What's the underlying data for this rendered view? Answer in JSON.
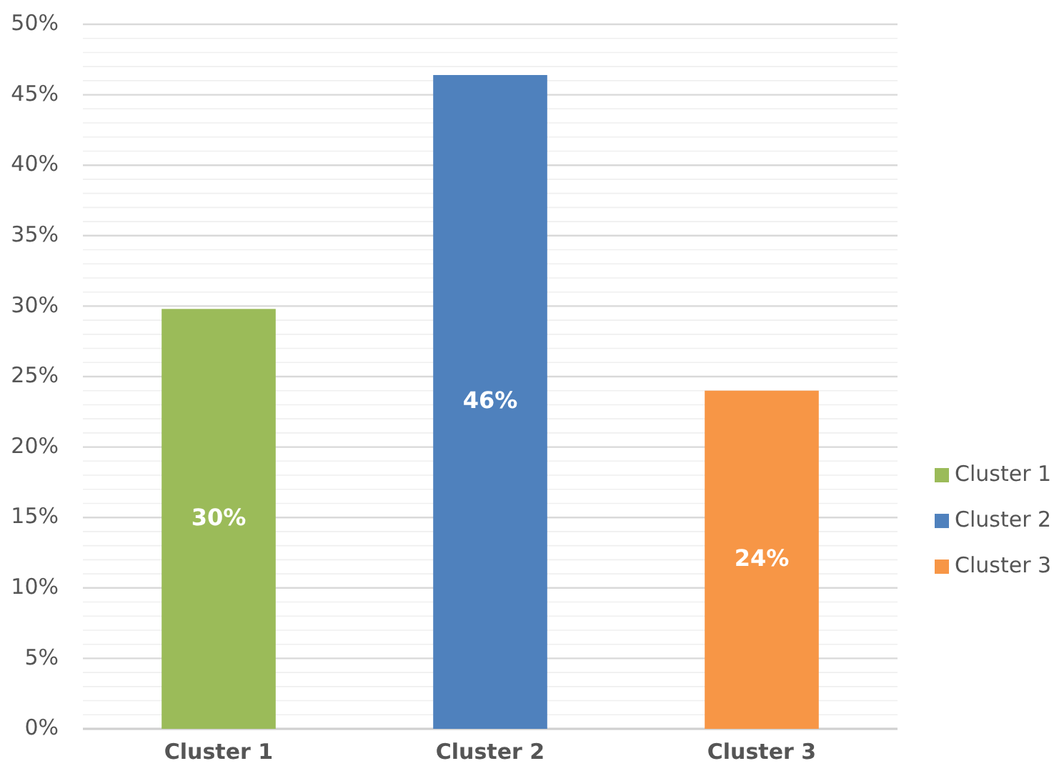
{
  "chart_data": {
    "type": "bar",
    "categories": [
      "Cluster 1",
      "Cluster 2",
      "Cluster 3"
    ],
    "stacked": true,
    "series": [
      {
        "name": "Cluster 1",
        "color": "#9bbb59",
        "values": [
          29.8,
          null,
          null
        ],
        "value_labels": [
          "30%",
          null,
          null
        ]
      },
      {
        "name": "Cluster 2",
        "color": "#4f81bd",
        "values": [
          null,
          46.4,
          null
        ],
        "value_labels": [
          null,
          "46%",
          null
        ]
      },
      {
        "name": "Cluster 3",
        "color": "#f79646",
        "values": [
          null,
          null,
          24.0
        ],
        "value_labels": [
          null,
          null,
          "24%"
        ]
      }
    ],
    "ylim": [
      0,
      50
    ],
    "yticks": [
      {
        "value": 0,
        "label": "0%"
      },
      {
        "value": 1,
        "label": null
      },
      {
        "value": 2,
        "label": null
      },
      {
        "value": 3,
        "label": null
      },
      {
        "value": 4,
        "label": null
      },
      {
        "value": 5,
        "label": "5%"
      },
      {
        "value": 6,
        "label": null
      },
      {
        "value": 7,
        "label": null
      },
      {
        "value": 8,
        "label": null
      },
      {
        "value": 9,
        "label": null
      },
      {
        "value": 10,
        "label": "10%"
      },
      {
        "value": 11,
        "label": null
      },
      {
        "value": 12,
        "label": null
      },
      {
        "value": 13,
        "label": null
      },
      {
        "value": 14,
        "label": null
      },
      {
        "value": 15,
        "label": "15%"
      },
      {
        "value": 16,
        "label": null
      },
      {
        "value": 17,
        "label": null
      },
      {
        "value": 18,
        "label": null
      },
      {
        "value": 19,
        "label": null
      },
      {
        "value": 20,
        "label": "20%"
      },
      {
        "value": 21,
        "label": null
      },
      {
        "value": 22,
        "label": null
      },
      {
        "value": 23,
        "label": null
      },
      {
        "value": 24,
        "label": null
      },
      {
        "value": 25,
        "label": "25%"
      },
      {
        "value": 26,
        "label": null
      },
      {
        "value": 27,
        "label": null
      },
      {
        "value": 28,
        "label": null
      },
      {
        "value": 29,
        "label": null
      },
      {
        "value": 30,
        "label": "30%"
      },
      {
        "value": 31,
        "label": null
      },
      {
        "value": 32,
        "label": null
      },
      {
        "value": 33,
        "label": null
      },
      {
        "value": 34,
        "label": null
      },
      {
        "value": 35,
        "label": "35%"
      },
      {
        "value": 36,
        "label": null
      },
      {
        "value": 37,
        "label": null
      },
      {
        "value": 38,
        "label": null
      },
      {
        "value": 39,
        "label": null
      },
      {
        "value": 40,
        "label": "40%"
      },
      {
        "value": 41,
        "label": null
      },
      {
        "value": 42,
        "label": null
      },
      {
        "value": 43,
        "label": null
      },
      {
        "value": 44,
        "label": null
      },
      {
        "value": 45,
        "label": "45%"
      },
      {
        "value": 46,
        "label": null
      },
      {
        "value": 47,
        "label": null
      },
      {
        "value": 48,
        "label": null
      },
      {
        "value": 49,
        "label": null
      },
      {
        "value": 50,
        "label": "50%"
      }
    ],
    "grid": "y",
    "legend": "right"
  }
}
